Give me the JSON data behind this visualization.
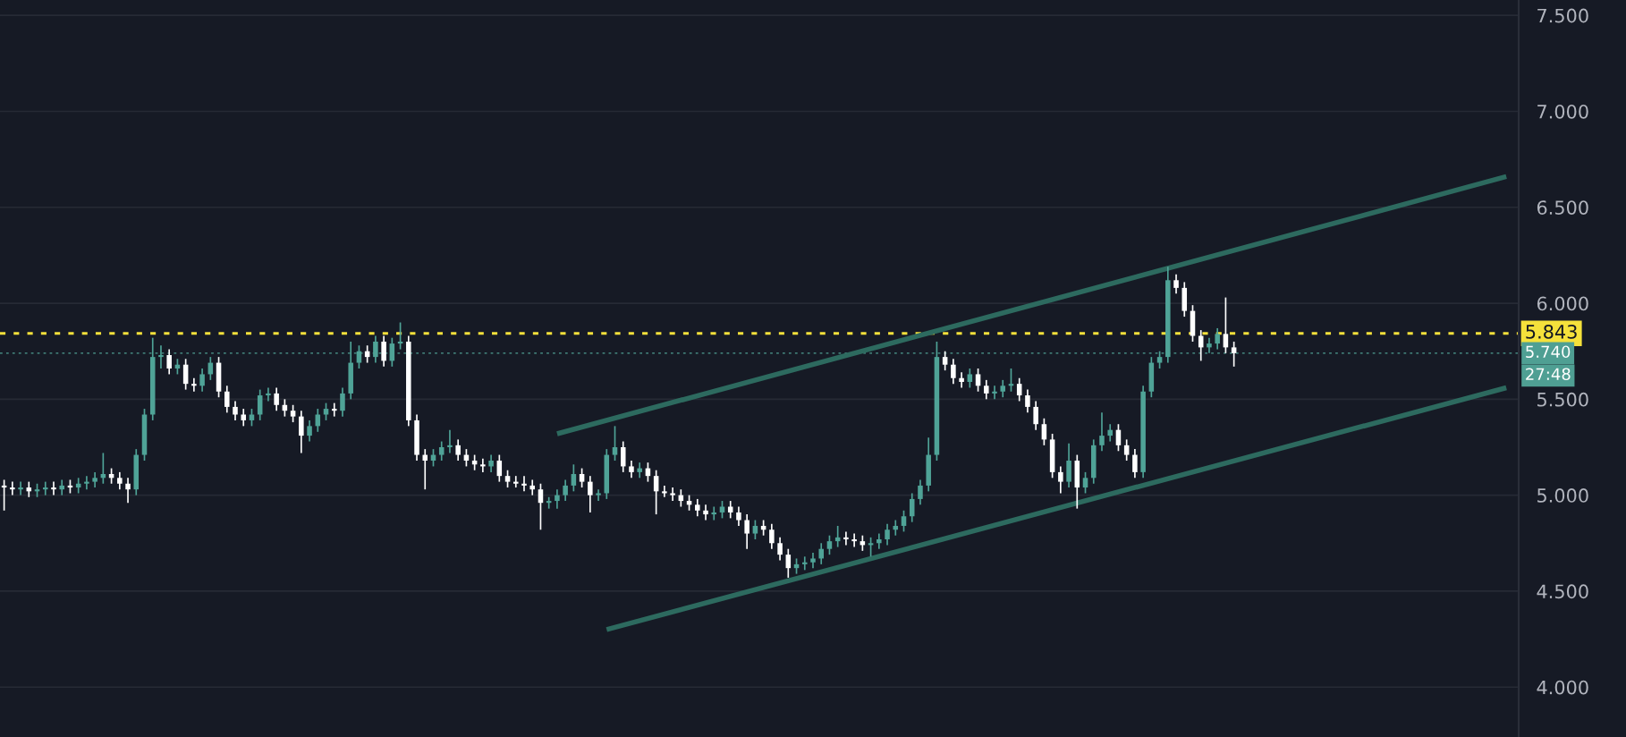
{
  "chart_data": {
    "type": "candlestick",
    "categories": [
      null,
      null,
      null,
      null,
      null,
      null,
      null,
      null,
      null,
      null,
      null,
      null,
      null,
      null,
      null,
      null,
      null,
      null,
      null,
      null,
      null,
      null,
      null,
      null,
      null,
      null,
      null,
      null,
      null,
      null,
      null,
      null,
      null,
      null,
      null,
      null,
      null,
      null,
      null,
      null,
      null,
      null,
      null,
      null,
      null,
      null,
      null,
      null,
      null,
      null,
      null,
      null,
      null,
      null,
      null,
      null,
      null,
      null,
      null,
      null,
      null,
      null,
      null,
      null,
      null,
      null,
      null,
      null,
      null,
      null,
      null,
      null,
      null,
      null,
      null,
      null,
      null,
      null,
      null,
      null,
      null,
      null,
      null,
      null,
      null,
      null,
      null,
      null,
      null,
      null,
      null,
      null,
      null,
      null,
      null,
      null,
      null,
      null,
      null,
      null,
      null,
      null,
      null,
      null,
      null,
      null,
      null,
      null,
      null,
      null,
      null,
      null,
      null,
      null,
      null,
      null,
      null,
      null,
      null,
      null,
      null,
      null,
      null,
      null,
      null,
      null,
      null,
      null,
      null,
      null,
      null,
      null,
      null,
      null,
      null,
      null,
      null,
      null,
      null,
      null,
      null,
      null,
      null,
      null,
      null,
      null,
      null,
      null,
      null,
      null,
      null,
      null,
      null,
      null,
      null,
      null,
      null,
      null,
      null,
      null,
      null,
      null,
      null,
      null,
      null,
      null,
      null,
      null,
      null,
      null,
      null,
      null,
      null,
      null,
      null,
      null,
      null,
      null,
      null,
      null,
      null,
      null,
      null,
      null
    ],
    "ohlc": [
      [
        5.05,
        5.08,
        4.92,
        5.04
      ],
      [
        5.04,
        5.07,
        5.0,
        5.03
      ],
      [
        5.03,
        5.07,
        5.0,
        5.04
      ],
      [
        5.04,
        5.07,
        4.99,
        5.02
      ],
      [
        5.02,
        5.06,
        4.99,
        5.03
      ],
      [
        5.03,
        5.07,
        5.0,
        5.04
      ],
      [
        5.04,
        5.07,
        5.0,
        5.03
      ],
      [
        5.03,
        5.08,
        5.0,
        5.05
      ],
      [
        5.05,
        5.08,
        5.01,
        5.04
      ],
      [
        5.04,
        5.09,
        5.01,
        5.06
      ],
      [
        5.06,
        5.1,
        5.03,
        5.07
      ],
      [
        5.07,
        5.12,
        5.04,
        5.09
      ],
      [
        5.09,
        5.22,
        5.06,
        5.11
      ],
      [
        5.11,
        5.14,
        5.06,
        5.09
      ],
      [
        5.09,
        5.12,
        5.03,
        5.06
      ],
      [
        5.06,
        5.09,
        4.96,
        5.03
      ],
      [
        5.03,
        5.24,
        5.0,
        5.21
      ],
      [
        5.21,
        5.45,
        5.18,
        5.42
      ],
      [
        5.42,
        5.82,
        5.39,
        5.72
      ],
      [
        5.72,
        5.78,
        5.66,
        5.73
      ],
      [
        5.73,
        5.76,
        5.63,
        5.66
      ],
      [
        5.66,
        5.71,
        5.63,
        5.68
      ],
      [
        5.68,
        5.71,
        5.55,
        5.58
      ],
      [
        5.58,
        5.61,
        5.54,
        5.57
      ],
      [
        5.57,
        5.66,
        5.54,
        5.63
      ],
      [
        5.63,
        5.72,
        5.6,
        5.69
      ],
      [
        5.69,
        5.72,
        5.51,
        5.54
      ],
      [
        5.54,
        5.57,
        5.43,
        5.46
      ],
      [
        5.46,
        5.49,
        5.39,
        5.42
      ],
      [
        5.42,
        5.45,
        5.36,
        5.39
      ],
      [
        5.39,
        5.45,
        5.36,
        5.42
      ],
      [
        5.42,
        5.55,
        5.39,
        5.52
      ],
      [
        5.52,
        5.56,
        5.49,
        5.53
      ],
      [
        5.53,
        5.56,
        5.44,
        5.47
      ],
      [
        5.47,
        5.5,
        5.41,
        5.44
      ],
      [
        5.44,
        5.47,
        5.38,
        5.41
      ],
      [
        5.41,
        5.44,
        5.22,
        5.31
      ],
      [
        5.31,
        5.39,
        5.28,
        5.36
      ],
      [
        5.36,
        5.45,
        5.33,
        5.42
      ],
      [
        5.42,
        5.48,
        5.39,
        5.45
      ],
      [
        5.45,
        5.48,
        5.41,
        5.44
      ],
      [
        5.44,
        5.56,
        5.41,
        5.53
      ],
      [
        5.53,
        5.8,
        5.5,
        5.69
      ],
      [
        5.69,
        5.78,
        5.66,
        5.75
      ],
      [
        5.75,
        5.78,
        5.69,
        5.72
      ],
      [
        5.72,
        5.83,
        5.69,
        5.8
      ],
      [
        5.8,
        5.83,
        5.67,
        5.7
      ],
      [
        5.7,
        5.82,
        5.67,
        5.79
      ],
      [
        5.79,
        5.9,
        5.76,
        5.8
      ],
      [
        5.8,
        5.83,
        5.36,
        5.39
      ],
      [
        5.39,
        5.42,
        5.18,
        5.21
      ],
      [
        5.21,
        5.24,
        5.03,
        5.18
      ],
      [
        5.18,
        5.24,
        5.15,
        5.21
      ],
      [
        5.21,
        5.28,
        5.18,
        5.25
      ],
      [
        5.25,
        5.34,
        5.22,
        5.26
      ],
      [
        5.26,
        5.29,
        5.18,
        5.21
      ],
      [
        5.21,
        5.24,
        5.15,
        5.18
      ],
      [
        5.18,
        5.21,
        5.13,
        5.16
      ],
      [
        5.16,
        5.19,
        5.12,
        5.15
      ],
      [
        5.15,
        5.21,
        5.12,
        5.18
      ],
      [
        5.18,
        5.21,
        5.07,
        5.1
      ],
      [
        5.1,
        5.13,
        5.04,
        5.07
      ],
      [
        5.07,
        5.1,
        5.04,
        5.06
      ],
      [
        5.06,
        5.1,
        5.02,
        5.05
      ],
      [
        5.05,
        5.08,
        5.0,
        5.03
      ],
      [
        5.03,
        5.06,
        4.82,
        4.96
      ],
      [
        4.96,
        4.99,
        4.93,
        4.97
      ],
      [
        4.97,
        5.03,
        4.93,
        5.0
      ],
      [
        5.0,
        5.08,
        4.97,
        5.05
      ],
      [
        5.05,
        5.16,
        5.02,
        5.11
      ],
      [
        5.11,
        5.14,
        5.04,
        5.07
      ],
      [
        5.07,
        5.1,
        4.91,
        5.0
      ],
      [
        5.0,
        5.03,
        4.97,
        5.01
      ],
      [
        5.01,
        5.24,
        4.98,
        5.21
      ],
      [
        5.21,
        5.36,
        5.18,
        5.25
      ],
      [
        5.25,
        5.28,
        5.12,
        5.15
      ],
      [
        5.15,
        5.18,
        5.09,
        5.12
      ],
      [
        5.12,
        5.17,
        5.09,
        5.14
      ],
      [
        5.14,
        5.17,
        5.07,
        5.1
      ],
      [
        5.1,
        5.13,
        4.9,
        5.02
      ],
      [
        5.02,
        5.05,
        4.99,
        5.01
      ],
      [
        5.01,
        5.04,
        4.97,
        5.0
      ],
      [
        5.0,
        5.03,
        4.94,
        4.97
      ],
      [
        4.97,
        5.0,
        4.92,
        4.95
      ],
      [
        4.95,
        4.98,
        4.89,
        4.92
      ],
      [
        4.92,
        4.95,
        4.87,
        4.9
      ],
      [
        4.9,
        4.94,
        4.87,
        4.91
      ],
      [
        4.91,
        4.97,
        4.88,
        4.94
      ],
      [
        4.94,
        4.97,
        4.88,
        4.91
      ],
      [
        4.91,
        4.94,
        4.84,
        4.87
      ],
      [
        4.87,
        4.9,
        4.72,
        4.8
      ],
      [
        4.8,
        4.87,
        4.77,
        4.84
      ],
      [
        4.84,
        4.87,
        4.79,
        4.82
      ],
      [
        4.82,
        4.85,
        4.72,
        4.75
      ],
      [
        4.75,
        4.78,
        4.66,
        4.69
      ],
      [
        4.69,
        4.72,
        4.57,
        4.62
      ],
      [
        4.62,
        4.67,
        4.59,
        4.64
      ],
      [
        4.64,
        4.68,
        4.61,
        4.65
      ],
      [
        4.65,
        4.7,
        4.62,
        4.67
      ],
      [
        4.67,
        4.75,
        4.64,
        4.72
      ],
      [
        4.72,
        4.79,
        4.69,
        4.76
      ],
      [
        4.76,
        4.84,
        4.73,
        4.78
      ],
      [
        4.78,
        4.81,
        4.74,
        4.77
      ],
      [
        4.77,
        4.8,
        4.73,
        4.76
      ],
      [
        4.76,
        4.79,
        4.71,
        4.74
      ],
      [
        4.74,
        4.78,
        4.68,
        4.75
      ],
      [
        4.75,
        4.8,
        4.72,
        4.77
      ],
      [
        4.77,
        4.85,
        4.74,
        4.82
      ],
      [
        4.82,
        4.87,
        4.79,
        4.84
      ],
      [
        4.84,
        4.92,
        4.81,
        4.89
      ],
      [
        4.89,
        5.01,
        4.86,
        4.98
      ],
      [
        4.98,
        5.08,
        4.95,
        5.05
      ],
      [
        5.05,
        5.3,
        5.02,
        5.21
      ],
      [
        5.21,
        5.8,
        5.18,
        5.72
      ],
      [
        5.72,
        5.75,
        5.65,
        5.68
      ],
      [
        5.68,
        5.71,
        5.58,
        5.61
      ],
      [
        5.61,
        5.64,
        5.56,
        5.59
      ],
      [
        5.59,
        5.66,
        5.56,
        5.63
      ],
      [
        5.63,
        5.66,
        5.54,
        5.57
      ],
      [
        5.57,
        5.6,
        5.5,
        5.53
      ],
      [
        5.53,
        5.57,
        5.5,
        5.54
      ],
      [
        5.54,
        5.6,
        5.51,
        5.57
      ],
      [
        5.57,
        5.66,
        5.54,
        5.58
      ],
      [
        5.58,
        5.61,
        5.49,
        5.52
      ],
      [
        5.52,
        5.55,
        5.43,
        5.46
      ],
      [
        5.46,
        5.49,
        5.34,
        5.37
      ],
      [
        5.37,
        5.4,
        5.26,
        5.29
      ],
      [
        5.29,
        5.32,
        5.09,
        5.12
      ],
      [
        5.12,
        5.15,
        5.01,
        5.07
      ],
      [
        5.07,
        5.27,
        5.04,
        5.18
      ],
      [
        5.18,
        5.21,
        4.93,
        5.04
      ],
      [
        5.04,
        5.12,
        5.01,
        5.09
      ],
      [
        5.09,
        5.29,
        5.06,
        5.26
      ],
      [
        5.26,
        5.43,
        5.23,
        5.31
      ],
      [
        5.31,
        5.37,
        5.28,
        5.34
      ],
      [
        5.34,
        5.37,
        5.23,
        5.26
      ],
      [
        5.26,
        5.29,
        5.18,
        5.21
      ],
      [
        5.21,
        5.24,
        5.09,
        5.12
      ],
      [
        5.12,
        5.57,
        5.09,
        5.54
      ],
      [
        5.54,
        5.72,
        5.51,
        5.69
      ],
      [
        5.69,
        5.75,
        5.66,
        5.72
      ],
      [
        5.72,
        6.19,
        5.69,
        6.12
      ],
      [
        6.12,
        6.15,
        6.05,
        6.08
      ],
      [
        6.08,
        6.11,
        5.93,
        5.96
      ],
      [
        5.96,
        5.99,
        5.8,
        5.83
      ],
      [
        5.83,
        5.86,
        5.7,
        5.77
      ],
      [
        5.77,
        5.82,
        5.74,
        5.79
      ],
      [
        5.79,
        5.87,
        5.76,
        5.84
      ],
      [
        5.84,
        6.03,
        5.74,
        5.77
      ],
      [
        5.77,
        5.8,
        5.67,
        5.74
      ],
      null,
      null,
      null,
      null,
      null,
      null,
      null,
      null,
      null,
      null,
      null,
      null,
      null,
      null,
      null,
      null,
      null,
      null,
      null,
      null,
      null,
      null,
      null,
      null,
      null,
      null,
      null,
      null,
      null,
      null,
      null,
      null,
      null,
      null
    ],
    "colors": [
      "#ffffff",
      "#ffffff",
      "#4fa397",
      "#ffffff",
      "#4fa397",
      "#4fa397",
      "#ffffff",
      "#4fa397",
      "#ffffff",
      "#4fa397",
      "#4fa397",
      "#4fa397",
      "#4fa397",
      "#ffffff",
      "#ffffff",
      "#ffffff",
      "#4fa397",
      "#4fa397",
      "#4fa397",
      "#4fa397",
      "#ffffff",
      "#4fa397",
      "#ffffff",
      "#ffffff",
      "#4fa397",
      "#4fa397",
      "#ffffff",
      "#ffffff",
      "#ffffff",
      "#ffffff",
      "#4fa397",
      "#4fa397",
      "#4fa397",
      "#ffffff",
      "#ffffff",
      "#ffffff",
      "#ffffff",
      "#4fa397",
      "#4fa397",
      "#4fa397",
      "#ffffff",
      "#4fa397",
      "#4fa397",
      "#4fa397",
      "#ffffff",
      "#4fa397",
      "#ffffff",
      "#4fa397",
      "#4fa397",
      "#ffffff",
      "#ffffff",
      "#ffffff",
      "#4fa397",
      "#4fa397",
      "#4fa397",
      "#ffffff",
      "#ffffff",
      "#ffffff",
      "#ffffff",
      "#4fa397",
      "#ffffff",
      "#ffffff",
      "#ffffff",
      "#ffffff",
      "#ffffff",
      "#ffffff",
      "#4fa397",
      "#4fa397",
      "#4fa397",
      "#4fa397",
      "#ffffff",
      "#ffffff",
      "#4fa397",
      "#4fa397",
      "#4fa397",
      "#ffffff",
      "#ffffff",
      "#4fa397",
      "#ffffff",
      "#ffffff",
      "#ffffff",
      "#ffffff",
      "#ffffff",
      "#ffffff",
      "#ffffff",
      "#ffffff",
      "#4fa397",
      "#4fa397",
      "#ffffff",
      "#ffffff",
      "#ffffff",
      "#4fa397",
      "#ffffff",
      "#ffffff",
      "#ffffff",
      "#ffffff",
      "#4fa397",
      "#4fa397",
      "#4fa397",
      "#4fa397",
      "#4fa397",
      "#4fa397",
      "#ffffff",
      "#ffffff",
      "#ffffff",
      "#4fa397",
      "#4fa397",
      "#4fa397",
      "#4fa397",
      "#4fa397",
      "#4fa397",
      "#4fa397",
      "#4fa397",
      "#4fa397",
      "#ffffff",
      "#ffffff",
      "#ffffff",
      "#4fa397",
      "#ffffff",
      "#ffffff",
      "#4fa397",
      "#4fa397",
      "#4fa397",
      "#ffffff",
      "#ffffff",
      "#ffffff",
      "#ffffff",
      "#ffffff",
      "#ffffff",
      "#4fa397",
      "#ffffff",
      "#4fa397",
      "#4fa397",
      "#4fa397",
      "#4fa397",
      "#ffffff",
      "#ffffff",
      "#ffffff",
      "#4fa397",
      "#4fa397",
      "#4fa397",
      "#4fa397",
      "#ffffff",
      "#ffffff",
      "#ffffff",
      "#ffffff",
      "#4fa397",
      "#4fa397",
      "#ffffff",
      "#ffffff",
      null,
      null,
      null,
      null,
      null,
      null,
      null,
      null,
      null,
      null,
      null,
      null,
      null,
      null,
      null,
      null,
      null,
      null,
      null,
      null,
      null,
      null,
      null,
      null,
      null,
      null,
      null,
      null,
      null,
      null,
      null,
      null,
      null,
      null
    ],
    "series": [
      {
        "type": "line",
        "color": "#2d6a5f",
        "values": [
          null,
          null,
          null,
          null,
          null,
          null,
          null,
          null,
          null,
          null,
          null,
          null,
          null,
          null,
          null,
          null,
          null,
          null,
          null,
          null,
          null,
          null,
          null,
          null,
          null,
          null,
          null,
          null,
          null,
          null,
          null,
          null,
          null,
          null,
          null,
          null,
          null,
          null,
          null,
          null,
          null,
          null,
          null,
          null,
          null,
          null,
          null,
          null,
          null,
          null,
          null,
          null,
          null,
          null,
          null,
          null,
          null,
          null,
          null,
          null,
          null,
          null,
          null,
          null,
          null,
          null,
          null,
          5.32,
          null,
          null,
          null,
          null,
          null,
          null,
          null,
          null,
          null,
          null,
          null,
          null,
          null,
          null,
          null,
          null,
          null,
          null,
          null,
          null,
          null,
          null,
          null,
          null,
          null,
          null,
          null,
          null,
          null,
          null,
          null,
          null,
          null,
          null,
          null,
          null,
          null,
          null,
          null,
          null,
          null,
          null,
          null,
          null,
          null,
          null,
          null,
          null,
          null,
          null,
          null,
          null,
          null,
          null,
          null,
          null,
          null,
          null,
          null,
          null,
          null,
          null,
          null,
          null,
          null,
          null,
          null,
          null,
          null,
          null,
          null,
          null,
          null,
          null,
          null,
          null,
          null,
          null,
          null,
          null,
          null,
          null,
          null,
          null,
          null,
          null,
          null,
          null,
          null,
          null,
          null,
          null,
          null,
          null,
          null,
          null,
          null,
          null,
          null,
          null,
          null,
          null,
          null,
          null,
          null,
          null,
          null,
          null,
          null,
          null,
          null,
          null,
          null,
          null,
          6.66,
          null
        ]
      },
      {
        "type": "line",
        "color": "#2d6a5f",
        "values": [
          null,
          null,
          null,
          null,
          null,
          null,
          null,
          null,
          null,
          null,
          null,
          null,
          null,
          null,
          null,
          null,
          null,
          null,
          null,
          null,
          null,
          null,
          null,
          null,
          null,
          null,
          null,
          null,
          null,
          null,
          null,
          null,
          null,
          null,
          null,
          null,
          null,
          null,
          null,
          null,
          null,
          null,
          null,
          null,
          null,
          null,
          null,
          null,
          null,
          null,
          null,
          null,
          null,
          null,
          null,
          null,
          null,
          null,
          null,
          null,
          null,
          null,
          null,
          null,
          null,
          null,
          null,
          null,
          null,
          null,
          null,
          null,
          null,
          4.3,
          null,
          null,
          null,
          null,
          null,
          null,
          null,
          null,
          null,
          null,
          null,
          null,
          null,
          null,
          null,
          null,
          null,
          null,
          null,
          null,
          null,
          null,
          null,
          null,
          null,
          null,
          null,
          null,
          null,
          null,
          null,
          null,
          null,
          null,
          null,
          null,
          null,
          null,
          null,
          null,
          null,
          null,
          null,
          null,
          null,
          null,
          null,
          null,
          null,
          null,
          null,
          null,
          null,
          null,
          null,
          null,
          null,
          null,
          null,
          null,
          null,
          null,
          null,
          null,
          null,
          null,
          null,
          null,
          null,
          null,
          null,
          null,
          null,
          null,
          null,
          null,
          null,
          null,
          null,
          null,
          null,
          null,
          null,
          null,
          null,
          null,
          null,
          null,
          null,
          null,
          null,
          null,
          null,
          null,
          null,
          null,
          null,
          null,
          null,
          null,
          null,
          null,
          null,
          null,
          null,
          null,
          null,
          null,
          5.56,
          null
        ]
      }
    ],
    "ylim": [
      3.74,
      7.58
    ],
    "yticks": [
      {
        "value": 4.0,
        "label": "4.000"
      },
      {
        "value": 4.5,
        "label": "4.500"
      },
      {
        "value": 5.0,
        "label": "5.000"
      },
      {
        "value": 5.5,
        "label": "5.500"
      },
      {
        "value": 6.0,
        "label": "6.000"
      },
      {
        "value": 6.5,
        "label": "6.500"
      },
      {
        "value": 7.0,
        "label": "7.000"
      },
      {
        "value": 7.5,
        "label": "7.500"
      }
    ],
    "ref_lines": [
      {
        "axis": "y",
        "value": 5.843,
        "label": "5.843",
        "color": "#f5e13b",
        "line_style": "dotted"
      },
      {
        "axis": "y",
        "value": 5.74,
        "label": "5.740",
        "color": "#4f9f93",
        "line_style": "dotted"
      }
    ],
    "annotations": [
      "27:48"
    ],
    "grid": "y",
    "tick_labels": "y"
  }
}
